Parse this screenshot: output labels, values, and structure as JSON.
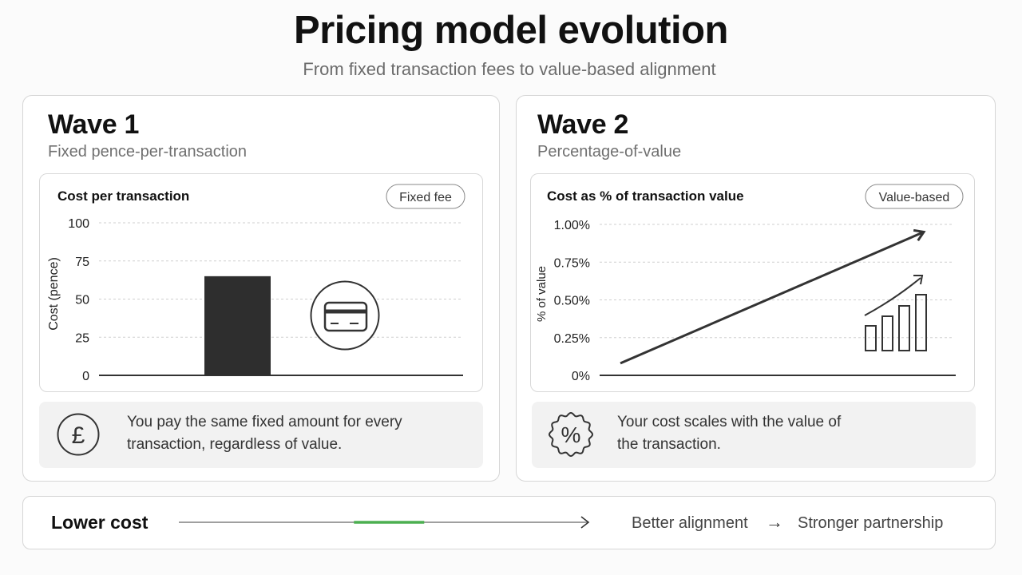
{
  "header": {
    "title": "Pricing model evolution",
    "subtitle": "From fixed transaction fees to value-based alignment"
  },
  "waves": [
    {
      "title": "Wave 1",
      "subtitle": "Fixed pence-per-transaction",
      "description": "You pay the same fixed amount for every transaction, regardless of value.",
      "icon": "pound-icon"
    },
    {
      "title": "Wave 2",
      "subtitle": "Percentage-of-value",
      "description": "Your cost scales with the value of the transaction.",
      "icon": "percent-badge-icon"
    }
  ],
  "chart_data": [
    {
      "type": "bar",
      "title": "Cost per transaction",
      "badge": "Fixed fee",
      "ylabel": "Cost (pence)",
      "xlabel": "",
      "ylim": [
        0,
        100
      ],
      "yticks": [
        "100",
        "75",
        "50",
        "25",
        "0"
      ],
      "categories": [
        ""
      ],
      "values": [
        65
      ],
      "grid": true,
      "colors": {
        "bar": "#2e2e2e"
      },
      "decoration": "credit-card-icon"
    },
    {
      "type": "line",
      "title": "Cost as % of transaction value",
      "badge": "Value-based",
      "ylabel": "% of value",
      "xlabel": "",
      "ylim": [
        0,
        1.0
      ],
      "yticks": [
        "1.00%",
        "0.75%",
        "0.50%",
        "0.25%",
        "0%"
      ],
      "x": [
        0,
        1
      ],
      "values": [
        0.08,
        0.95
      ],
      "grid": true,
      "colors": {
        "line": "#333333"
      },
      "decoration": "growth-bars-icon"
    }
  ],
  "footer": {
    "lower_cost": "Lower cost",
    "better_alignment": "Better alignment",
    "arrow": "→",
    "stronger_partnership": "Stronger partnership",
    "progress": 0.3,
    "colors": {
      "accent": "#4caf50",
      "track": "#666666"
    }
  }
}
